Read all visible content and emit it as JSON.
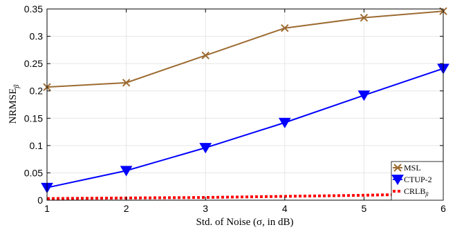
{
  "chart_data": {
    "type": "line",
    "title": "",
    "xlabel": "Std. of Noise (σ, in dB)",
    "ylabel": "NRMSE",
    "ylabel_sub": "β",
    "x": [
      1,
      2,
      3,
      4,
      5,
      6
    ],
    "xlim": [
      1,
      6
    ],
    "ylim": [
      0,
      0.35
    ],
    "xticks": [
      "1",
      "2",
      "3",
      "4",
      "5",
      "6"
    ],
    "yticks": [
      "0",
      "0.05",
      "0.1",
      "0.15",
      "0.2",
      "0.25",
      "0.3",
      "0.35"
    ],
    "grid": true,
    "legend_position": "bottom-right",
    "series": [
      {
        "name": "MSL",
        "values": [
          0.207,
          0.215,
          0.265,
          0.315,
          0.334,
          0.346
        ],
        "color": "#9c6a30",
        "marker": "x",
        "style": "solid"
      },
      {
        "name": "CTUP-2",
        "values": [
          0.023,
          0.054,
          0.096,
          0.142,
          0.192,
          0.241
        ],
        "color": "#0000ff",
        "marker": "triangle-down",
        "style": "solid"
      },
      {
        "name": "CRLB",
        "name_sub": "β",
        "values": [
          0.003,
          0.004,
          0.005,
          0.007,
          0.009,
          0.012
        ],
        "color": "#ff0000",
        "marker": "none",
        "style": "dotted"
      }
    ]
  }
}
